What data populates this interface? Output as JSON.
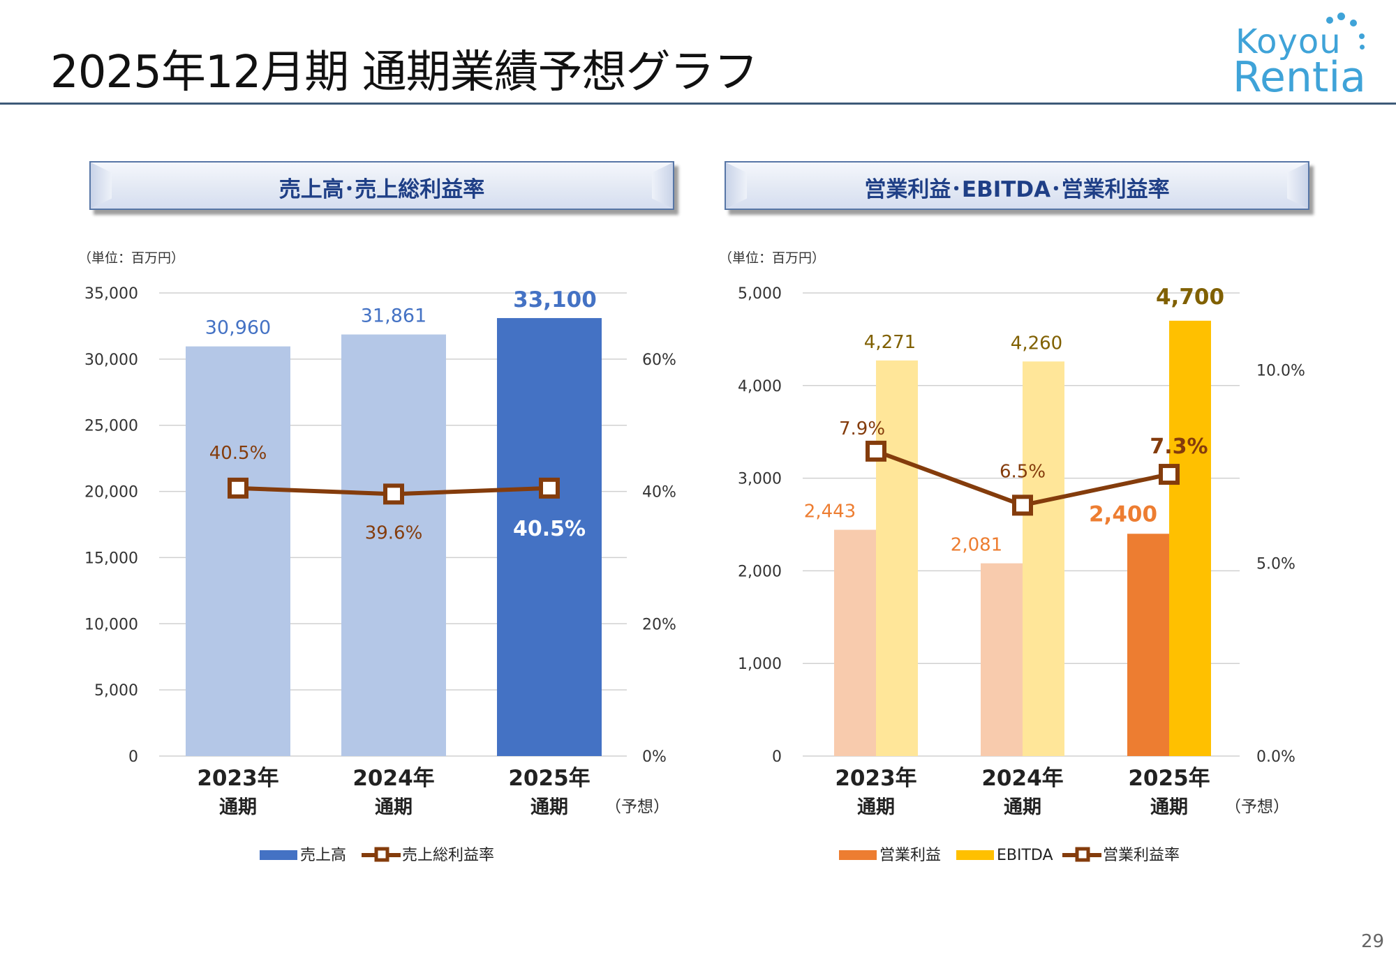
{
  "page": {
    "title": "2025年12月期 通期業績予想グラフ",
    "page_number": "29"
  },
  "logo": {
    "line1": "Koyou",
    "line2": "Rentia"
  },
  "colors": {
    "title_rule": "#3d5a78",
    "header_text": "#1f3f86",
    "sales_past": "#b4c7e7",
    "sales_forecast": "#4472c4",
    "sales_label_past": "#4472c4",
    "margin_line": "#843c0c",
    "margin_label": "#843c0c",
    "op_past": "#f8cbad",
    "op_forecast": "#ed7d31",
    "op_label": "#ed7d31",
    "ebitda_past": "#ffe699",
    "ebitda_forecast": "#ffc000",
    "ebitda_label": "#806000",
    "grid": "#d0d0d0",
    "axis_text": "#333333"
  },
  "chart_data": [
    {
      "type": "bar",
      "header": "売上高･売上総利益率",
      "unit_label": "（単位：百万円）",
      "categories": [
        {
          "year": "2023年",
          "period": "通期",
          "note": ""
        },
        {
          "year": "2024年",
          "period": "通期",
          "note": ""
        },
        {
          "year": "2025年",
          "period": "通期",
          "note": "（予想）"
        }
      ],
      "series": [
        {
          "name": "売上高",
          "kind": "bar",
          "axis": "left",
          "values": [
            30960,
            31861,
            33100
          ],
          "labels": [
            "30,960",
            "31,861",
            "33,100"
          ],
          "forecast_index": 2
        },
        {
          "name": "売上総利益率",
          "kind": "line",
          "axis": "right",
          "values": [
            40.5,
            39.6,
            40.5
          ],
          "labels": [
            "40.5%",
            "39.6%",
            "40.5%"
          ]
        }
      ],
      "y_left": {
        "min": 0,
        "max": 35000,
        "ticks": [
          0,
          5000,
          10000,
          15000,
          20000,
          25000,
          30000,
          35000
        ],
        "tick_labels": [
          "0",
          "5,000",
          "10,000",
          "15,000",
          "20,000",
          "25,000",
          "30,000",
          "35,000"
        ]
      },
      "y_right": {
        "min": 0,
        "max": 70,
        "ticks": [
          0,
          20,
          40,
          60
        ],
        "tick_labels": [
          "0%",
          "20%",
          "40%",
          "60%"
        ]
      },
      "grid": true,
      "legend_position": "bottom",
      "legend": [
        {
          "label": "売上高",
          "kind": "bar"
        },
        {
          "label": "売上総利益率",
          "kind": "line"
        }
      ]
    },
    {
      "type": "bar",
      "header": "営業利益･EBITDA･営業利益率",
      "unit_label": "（単位：百万円）",
      "categories": [
        {
          "year": "2023年",
          "period": "通期",
          "note": ""
        },
        {
          "year": "2024年",
          "period": "通期",
          "note": ""
        },
        {
          "year": "2025年",
          "period": "通期",
          "note": "（予想）"
        }
      ],
      "series": [
        {
          "name": "営業利益",
          "kind": "bar",
          "axis": "left",
          "values": [
            2443,
            2081,
            2400
          ],
          "labels": [
            "2,443",
            "2,081",
            "2,400"
          ],
          "forecast_index": 2
        },
        {
          "name": "EBITDA",
          "kind": "bar",
          "axis": "left",
          "values": [
            4271,
            4260,
            4700
          ],
          "labels": [
            "4,271",
            "4,260",
            "4,700"
          ],
          "forecast_index": 2
        },
        {
          "name": "営業利益率",
          "kind": "line",
          "axis": "right",
          "values": [
            7.9,
            6.5,
            7.3
          ],
          "labels": [
            "7.9%",
            "6.5%",
            "7.3%"
          ]
        }
      ],
      "y_left": {
        "min": 0,
        "max": 5000,
        "ticks": [
          0,
          1000,
          2000,
          3000,
          4000,
          5000
        ],
        "tick_labels": [
          "0",
          "1,000",
          "2,000",
          "3,000",
          "4,000",
          "5,000"
        ]
      },
      "y_right": {
        "min": 0,
        "max": 12,
        "ticks": [
          0,
          5,
          10
        ],
        "tick_labels": [
          "0.0%",
          "5.0%",
          "10.0%"
        ]
      },
      "grid": true,
      "legend_position": "bottom",
      "legend": [
        {
          "label": "営業利益",
          "kind": "bar"
        },
        {
          "label": "EBITDA",
          "kind": "bar"
        },
        {
          "label": "営業利益率",
          "kind": "line"
        }
      ]
    }
  ]
}
